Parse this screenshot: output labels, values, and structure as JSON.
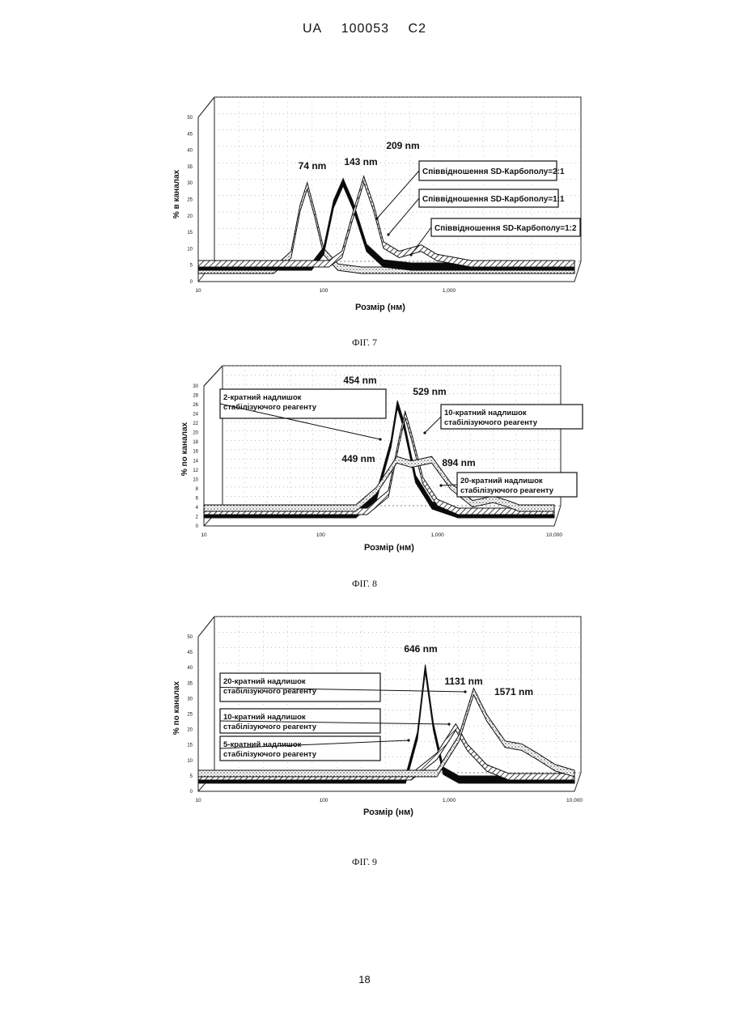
{
  "header": {
    "country": "UA",
    "number": "100053",
    "kind": "C2"
  },
  "page_number": "18",
  "chart_data": [
    {
      "type": "line",
      "caption": "ФІГ. 7",
      "xlabel": "Розмір (нм)",
      "ylabel": "% в каналах",
      "x_scale": "log",
      "xlim": [
        10,
        10000
      ],
      "x_ticks": [
        "10",
        "100",
        "1,000"
      ],
      "ylim": [
        0,
        50
      ],
      "y_ticks": [
        "0",
        "5",
        "10",
        "15",
        "20",
        "25",
        "30",
        "35",
        "40",
        "45",
        "50"
      ],
      "grid": true,
      "peak_labels": [
        "74 nm",
        "143 nm",
        "209 nm"
      ],
      "series": [
        {
          "name": "Співвідношення SD-Карбополу=2:1",
          "fill": "dotted",
          "x": [
            10,
            40,
            55,
            65,
            74,
            85,
            100,
            130,
            200,
            400,
            10000
          ],
          "y": [
            0,
            0,
            5,
            20,
            27,
            18,
            6,
            1,
            0,
            0,
            0
          ]
        },
        {
          "name": "Співвідношення SD-Карбополу=1:1",
          "fill": "solid",
          "x": [
            10,
            80,
            100,
            120,
            143,
            170,
            220,
            300,
            500,
            10000
          ],
          "y": [
            0,
            0,
            5,
            20,
            27,
            20,
            6,
            1,
            0,
            0
          ]
        },
        {
          "name": "Співвідношення SD-Карбополу=1:2",
          "fill": "hatched",
          "x": [
            10,
            110,
            140,
            170,
            209,
            250,
            300,
            400,
            600,
            800,
            1100,
            1500,
            10000
          ],
          "y": [
            0,
            0,
            3,
            15,
            27,
            18,
            6,
            3,
            5,
            2,
            1,
            0,
            0
          ]
        }
      ]
    },
    {
      "type": "line",
      "caption": "ФІГ. 8",
      "xlabel": "Розмір (нм)",
      "ylabel": "% по каналах",
      "x_scale": "log",
      "xlim": [
        10,
        10000
      ],
      "x_ticks": [
        "10",
        "100",
        "1,000",
        "10,000"
      ],
      "ylim": [
        0,
        30
      ],
      "y_ticks": [
        "0",
        "2",
        "4",
        "6",
        "8",
        "10",
        "12",
        "14",
        "16",
        "18",
        "20",
        "22",
        "24",
        "26",
        "28",
        "30"
      ],
      "grid": true,
      "peak_labels": [
        "454 nm",
        "529 nm",
        "449 nm",
        "894 nm"
      ],
      "series": [
        {
          "name": "2-кратний надлишок стабілізуючого реагенту",
          "fill": "solid",
          "x": [
            10,
            200,
            300,
            400,
            454,
            520,
            650,
            900,
            1500,
            10000
          ],
          "y": [
            0,
            0,
            4,
            16,
            25,
            20,
            8,
            2,
            0,
            0
          ]
        },
        {
          "name": "10-кратний надлишок стабілізуючого реагенту",
          "fill": "hatched",
          "x": [
            10,
            250,
            380,
            470,
            529,
            600,
            750,
            1000,
            1500,
            10000
          ],
          "y": [
            0,
            0,
            4,
            16,
            22,
            17,
            7,
            2,
            0,
            0
          ]
        },
        {
          "name": "20-кратний надлишок стабілізуючого реагенту",
          "fill": "dotted",
          "x": [
            10,
            200,
            300,
            449,
            600,
            894,
            1300,
            2000,
            3000,
            4000,
            5000,
            10000
          ],
          "y": [
            0,
            0,
            4,
            11,
            10,
            11,
            5,
            1,
            2,
            1,
            0,
            0
          ]
        }
      ]
    },
    {
      "type": "line",
      "caption": "ФІГ. 9",
      "xlabel": "Розмір (нм)",
      "ylabel": "% по каналах",
      "x_scale": "log",
      "xlim": [
        10,
        10000
      ],
      "x_ticks": [
        "10",
        "100",
        "1,000",
        "10,000"
      ],
      "ylim": [
        0,
        50
      ],
      "y_ticks": [
        "0",
        "5",
        "10",
        "15",
        "20",
        "25",
        "30",
        "35",
        "40",
        "45",
        "50"
      ],
      "grid": true,
      "peak_labels": [
        "646 nm",
        "1131 nm",
        "1571 nm"
      ],
      "series": [
        {
          "name": "5-кратний надлишок стабілізуючого реагенту",
          "fill": "solid",
          "x": [
            10,
            450,
            560,
            646,
            750,
            900,
            1200,
            10000
          ],
          "y": [
            0,
            0,
            15,
            38,
            18,
            3,
            0,
            0
          ]
        },
        {
          "name": "10-кратний надлишок стабілізуючого реагенту",
          "fill": "hatched",
          "x": [
            10,
            500,
            800,
            1131,
            1400,
            2000,
            3000,
            10000
          ],
          "y": [
            0,
            0,
            7,
            17,
            10,
            3,
            0,
            0
          ]
        },
        {
          "name": "20-кратний надлишок стабілізуючого реагенту",
          "fill": "dotted",
          "x": [
            10,
            800,
            1200,
            1571,
            2000,
            2800,
            3800,
            5000,
            7000,
            10000
          ],
          "y": [
            0,
            0,
            12,
            28,
            19,
            10,
            9,
            6,
            2,
            0
          ]
        }
      ]
    }
  ]
}
